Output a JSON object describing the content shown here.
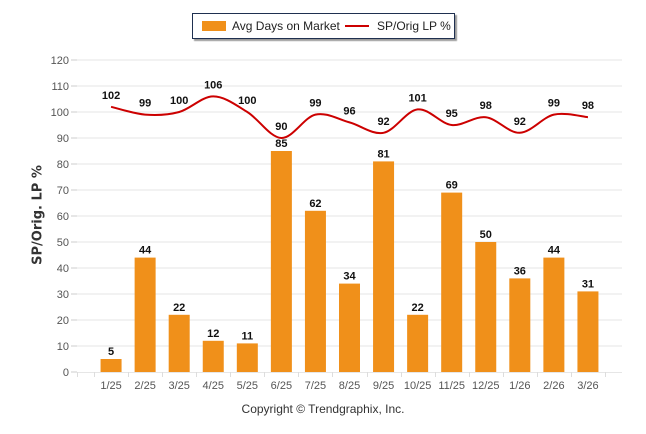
{
  "chart_data": {
    "type": "bar+line",
    "title": "",
    "xlabel": "",
    "ylabel": "SP/Orig. LP %",
    "ylim": [
      0,
      120
    ],
    "yticks": [
      0,
      10,
      20,
      30,
      40,
      50,
      60,
      70,
      80,
      90,
      100,
      110,
      120
    ],
    "grid": true,
    "legend_position": "top-center",
    "categories": [
      "1/25",
      "2/25",
      "3/25",
      "4/25",
      "5/25",
      "6/25",
      "7/25",
      "8/25",
      "9/25",
      "10/25",
      "11/25",
      "12/25",
      "1/26",
      "2/26",
      "3/26"
    ],
    "series": [
      {
        "name": "Avg Days on Market",
        "type": "bar",
        "color": "#f0901a",
        "values": [
          5,
          44,
          22,
          12,
          11,
          85,
          62,
          34,
          81,
          22,
          69,
          50,
          36,
          44,
          31
        ]
      },
      {
        "name": "SP/Orig LP %",
        "type": "line",
        "color": "#cc0000",
        "values": [
          102,
          99,
          100,
          106,
          100,
          90,
          99,
          96,
          92,
          101,
          95,
          98,
          92,
          99,
          98
        ]
      }
    ]
  },
  "footer": {
    "copyright": "Copyright © Trendgraphix, Inc."
  }
}
